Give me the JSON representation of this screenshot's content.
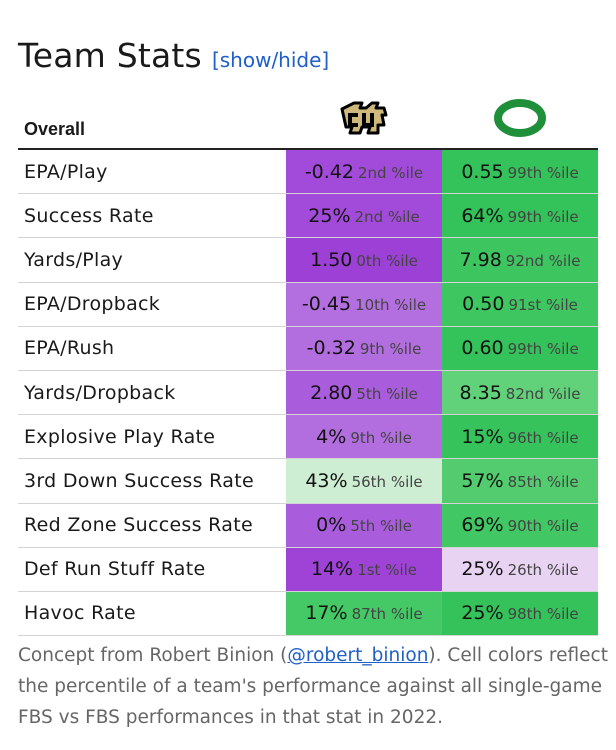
{
  "header": {
    "title": "Team Stats",
    "toggle_label": "[show/hide]"
  },
  "table": {
    "first_column_header": "Overall",
    "teams": [
      {
        "logo_icon": "colorado-buffaloes-logo-icon",
        "logo_text": "CU"
      },
      {
        "logo_icon": "oregon-ducks-logo-icon",
        "logo_text": "O"
      }
    ],
    "rows": [
      {
        "label": "EPA/Play",
        "cells": [
          {
            "value": "-0.42",
            "percentile": "2nd %ile",
            "color": "#a24ad9"
          },
          {
            "value": "0.55",
            "percentile": "99th %ile",
            "color": "#34c25a"
          }
        ]
      },
      {
        "label": "Success Rate",
        "cells": [
          {
            "value": "25%",
            "percentile": "2nd %ile",
            "color": "#a24ad9"
          },
          {
            "value": "64%",
            "percentile": "99th %ile",
            "color": "#34c25a"
          }
        ]
      },
      {
        "label": "Yards/Play",
        "cells": [
          {
            "value": "1.50",
            "percentile": "0th %ile",
            "color": "#9c40d6"
          },
          {
            "value": "7.98",
            "percentile": "92nd %ile",
            "color": "#3dc560"
          }
        ]
      },
      {
        "label": "EPA/Dropback",
        "cells": [
          {
            "value": "-0.45",
            "percentile": "10th %ile",
            "color": "#b36fe0"
          },
          {
            "value": "0.50",
            "percentile": "91st %ile",
            "color": "#3ec661"
          }
        ]
      },
      {
        "label": "EPA/Rush",
        "cells": [
          {
            "value": "-0.32",
            "percentile": "9th %ile",
            "color": "#b26ddf"
          },
          {
            "value": "0.60",
            "percentile": "99th %ile",
            "color": "#34c25a"
          }
        ]
      },
      {
        "label": "Yards/Dropback",
        "cells": [
          {
            "value": "2.80",
            "percentile": "5th %ile",
            "color": "#a95ddc"
          },
          {
            "value": "8.35",
            "percentile": "82nd %ile",
            "color": "#61d17a"
          }
        ]
      },
      {
        "label": "Explosive Play Rate",
        "cells": [
          {
            "value": "4%",
            "percentile": "9th %ile",
            "color": "#b26ddf"
          },
          {
            "value": "15%",
            "percentile": "96th %ile",
            "color": "#36c35c"
          }
        ]
      },
      {
        "label": "3rd Down Success Rate",
        "cells": [
          {
            "value": "43%",
            "percentile": "56th %ile",
            "color": "#cdeed3"
          },
          {
            "value": "57%",
            "percentile": "85th %ile",
            "color": "#52cc6e"
          }
        ]
      },
      {
        "label": "Red Zone Success Rate",
        "cells": [
          {
            "value": "0%",
            "percentile": "5th %ile",
            "color": "#a95ddc"
          },
          {
            "value": "69%",
            "percentile": "90th %ile",
            "color": "#41c763"
          }
        ]
      },
      {
        "label": "Def Run Stuff Rate",
        "cells": [
          {
            "value": "14%",
            "percentile": "1st %ile",
            "color": "#9f43d7"
          },
          {
            "value": "25%",
            "percentile": "26th %ile",
            "color": "#e9d3f2"
          }
        ]
      },
      {
        "label": "Havoc Rate",
        "cells": [
          {
            "value": "17%",
            "percentile": "87th %ile",
            "color": "#45c866"
          },
          {
            "value": "25%",
            "percentile": "98th %ile",
            "color": "#35c25b"
          }
        ]
      }
    ]
  },
  "footer": {
    "text_before_link": "Concept from Robert Binion (",
    "link_text": "@robert_binion",
    "text_after_link": "). Cell colors reflect the percentile of a team's performance against all single-game FBS vs FBS performances in that stat in 2022."
  }
}
